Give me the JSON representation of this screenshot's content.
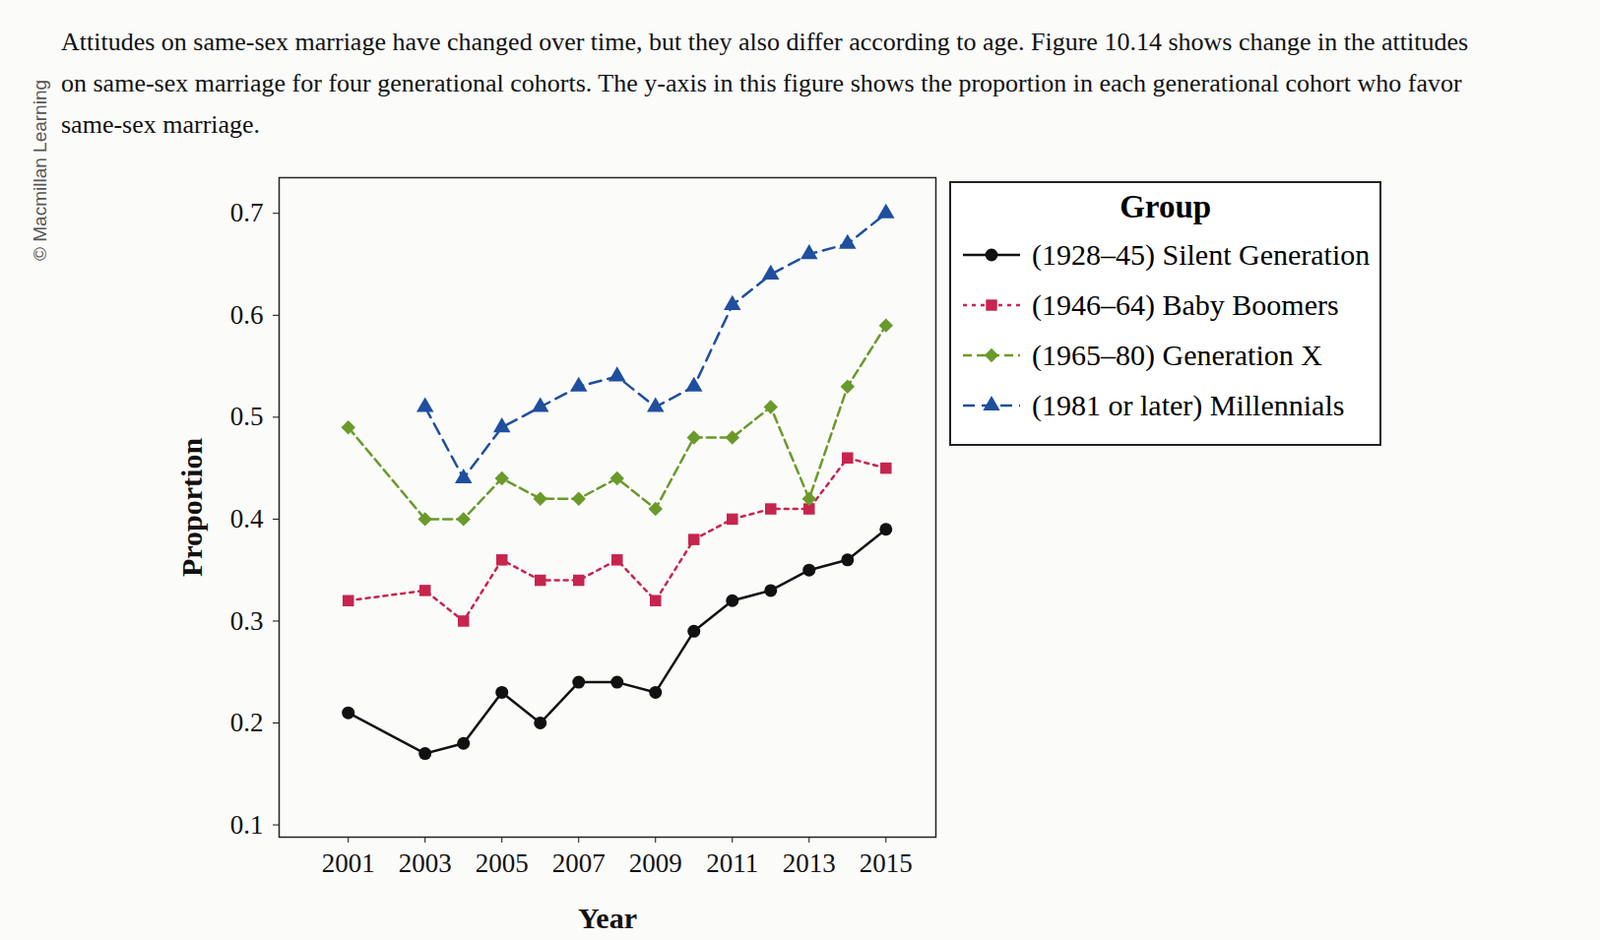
{
  "chart_data": {
    "type": "line",
    "title": "Attitudes on same-sex marriage have changed over time, but they also differ according to age. Figure 10.14 shows change in the attitudes on same-sex marriage for four generational cohorts. The y-axis in this figure shows the proportion in each generational cohort who favor same-sex marriage.",
    "annotations": [
      "© Macmillan Learning"
    ],
    "x_label": "Year",
    "y_label": "Proportion",
    "legend_title": "Group",
    "legend": "right",
    "grid": false,
    "x": [
      2001,
      2003,
      2004,
      2005,
      2006,
      2007,
      2008,
      2009,
      2010,
      2011,
      2012,
      2013,
      2014,
      2015
    ],
    "xlim": [
      1999.2,
      2016.3
    ],
    "xticks": [
      2001,
      2003,
      2005,
      2007,
      2009,
      2011,
      2013,
      2015
    ],
    "ylim": [
      0.088,
      0.735
    ],
    "yticks": [
      0.1,
      0.2,
      0.3,
      0.4,
      0.5,
      0.6,
      0.7
    ],
    "series": [
      {
        "name": "(1928–45) Silent Generation",
        "color": "#111111",
        "marker": "circle",
        "line_style": "solid",
        "values": [
          0.21,
          0.17,
          0.18,
          0.23,
          0.2,
          0.24,
          0.24,
          0.23,
          0.29,
          0.32,
          0.33,
          0.35,
          0.36,
          0.39
        ]
      },
      {
        "name": "(1946–64) Baby Boomers",
        "color": "#c7254e",
        "marker": "square",
        "line_style": "dotted",
        "values": [
          0.32,
          0.33,
          0.3,
          0.36,
          0.34,
          0.34,
          0.36,
          0.32,
          0.38,
          0.4,
          0.41,
          0.41,
          0.46,
          0.45
        ]
      },
      {
        "name": "(1965–80) Generation X",
        "color": "#6a9a2a",
        "marker": "diamond",
        "line_style": "dashed",
        "values": [
          0.49,
          0.4,
          0.4,
          0.44,
          0.42,
          0.42,
          0.44,
          0.41,
          0.48,
          0.48,
          0.51,
          0.42,
          0.53,
          0.59
        ]
      },
      {
        "name": "(1981 or later) Millennials",
        "color": "#1f4f9e",
        "marker": "triangle",
        "line_style": "longdash",
        "values": [
          null,
          0.51,
          0.44,
          0.49,
          0.51,
          0.53,
          0.54,
          0.51,
          0.53,
          0.61,
          0.64,
          0.66,
          0.67,
          0.7
        ]
      }
    ]
  }
}
